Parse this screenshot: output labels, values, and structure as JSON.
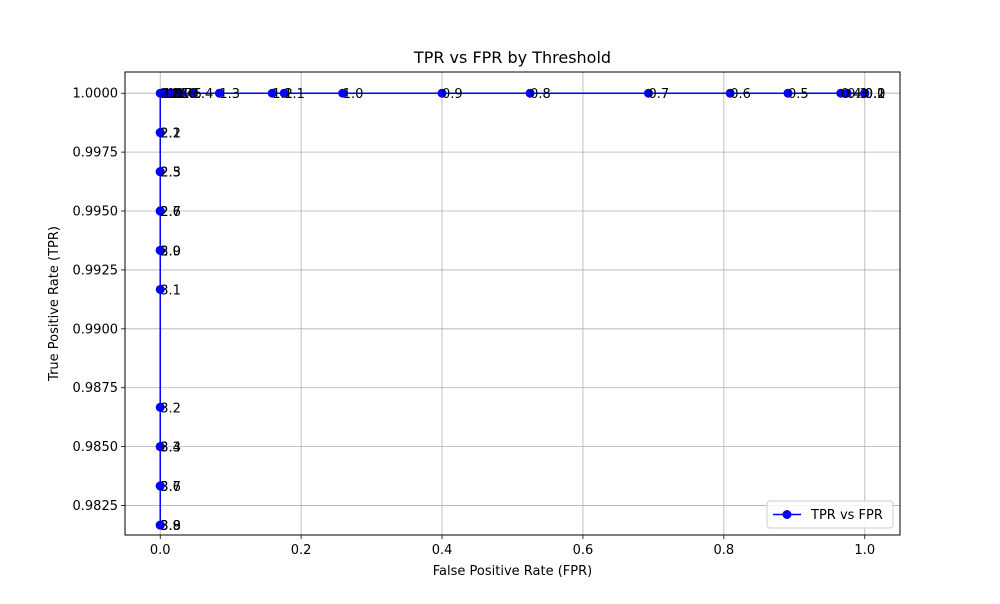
{
  "chart_data": {
    "type": "line",
    "title": "TPR vs FPR by Threshold",
    "xlabel": "False Positive Rate (FPR)",
    "ylabel": "True Positive Rate (TPR)",
    "xlim": [
      -0.05,
      1.05
    ],
    "ylim": [
      0.98125,
      1.0009
    ],
    "grid": true,
    "legend_position": "lower right",
    "x_ticks": [
      0.0,
      0.2,
      0.4,
      0.6,
      0.8,
      1.0
    ],
    "x_tick_labels": [
      "0.0",
      "0.2",
      "0.4",
      "0.6",
      "0.8",
      "1.0"
    ],
    "y_ticks": [
      0.9825,
      0.985,
      0.9875,
      0.99,
      0.9925,
      0.995,
      0.9975,
      1.0
    ],
    "y_tick_labels": [
      "0.9825",
      "0.9850",
      "0.9875",
      "0.9900",
      "0.9925",
      "0.9950",
      "0.9975",
      "1.0000"
    ],
    "series": [
      {
        "name": "TPR vs FPR",
        "color": "#0000ff",
        "marker": "circle",
        "points": [
          {
            "x": 0.0,
            "y": 0.98167,
            "label": "3.9"
          },
          {
            "x": 0.0,
            "y": 0.98167,
            "label": "3.8"
          },
          {
            "x": 0.0,
            "y": 0.98333,
            "label": "3.7"
          },
          {
            "x": 0.0,
            "y": 0.98333,
            "label": "3.6"
          },
          {
            "x": 0.0,
            "y": 0.985,
            "label": "3.4"
          },
          {
            "x": 0.0,
            "y": 0.985,
            "label": "3.3"
          },
          {
            "x": 0.0,
            "y": 0.98667,
            "label": "3.2"
          },
          {
            "x": 0.0,
            "y": 0.99167,
            "label": "3.1"
          },
          {
            "x": 0.0,
            "y": 0.99333,
            "label": "3.0"
          },
          {
            "x": 0.0,
            "y": 0.99333,
            "label": "2.9"
          },
          {
            "x": 0.0,
            "y": 0.995,
            "label": "2.7"
          },
          {
            "x": 0.0,
            "y": 0.995,
            "label": "2.6"
          },
          {
            "x": 0.0,
            "y": 0.99667,
            "label": "2.5"
          },
          {
            "x": 0.0,
            "y": 0.99667,
            "label": "2.3"
          },
          {
            "x": 0.0,
            "y": 0.99833,
            "label": "2.2"
          },
          {
            "x": 0.0,
            "y": 0.99833,
            "label": "2.1"
          },
          {
            "x": 0.0,
            "y": 1.0,
            "label": "2.0"
          },
          {
            "x": 0.004,
            "y": 1.0,
            "label": "1.9"
          },
          {
            "x": 0.01,
            "y": 1.0,
            "label": "1.8"
          },
          {
            "x": 0.016,
            "y": 1.0,
            "label": "1.7"
          },
          {
            "x": 0.022,
            "y": 1.0,
            "label": "1.6"
          },
          {
            "x": 0.03,
            "y": 1.0,
            "label": "1.5"
          },
          {
            "x": 0.046,
            "y": 1.0,
            "label": "1.4"
          },
          {
            "x": 0.084,
            "y": 1.0,
            "label": "1.3"
          },
          {
            "x": 0.159,
            "y": 1.0,
            "label": "1.2"
          },
          {
            "x": 0.176,
            "y": 1.0,
            "label": "1.1"
          },
          {
            "x": 0.259,
            "y": 1.0,
            "label": "1.0"
          },
          {
            "x": 0.4,
            "y": 1.0,
            "label": "0.9"
          },
          {
            "x": 0.525,
            "y": 1.0,
            "label": "0.8"
          },
          {
            "x": 0.693,
            "y": 1.0,
            "label": "0.7"
          },
          {
            "x": 0.809,
            "y": 1.0,
            "label": "0.6"
          },
          {
            "x": 0.891,
            "y": 1.0,
            "label": "0.5"
          },
          {
            "x": 0.966,
            "y": 1.0,
            "label": "0.4"
          },
          {
            "x": 0.975,
            "y": 1.0,
            "label": "0.3"
          },
          {
            "x": 1.0,
            "y": 1.0,
            "label": "0.2"
          },
          {
            "x": 1.0,
            "y": 1.0,
            "label": "0.1"
          },
          {
            "x": 1.0,
            "y": 1.0,
            "label": "0.0"
          }
        ]
      }
    ]
  }
}
